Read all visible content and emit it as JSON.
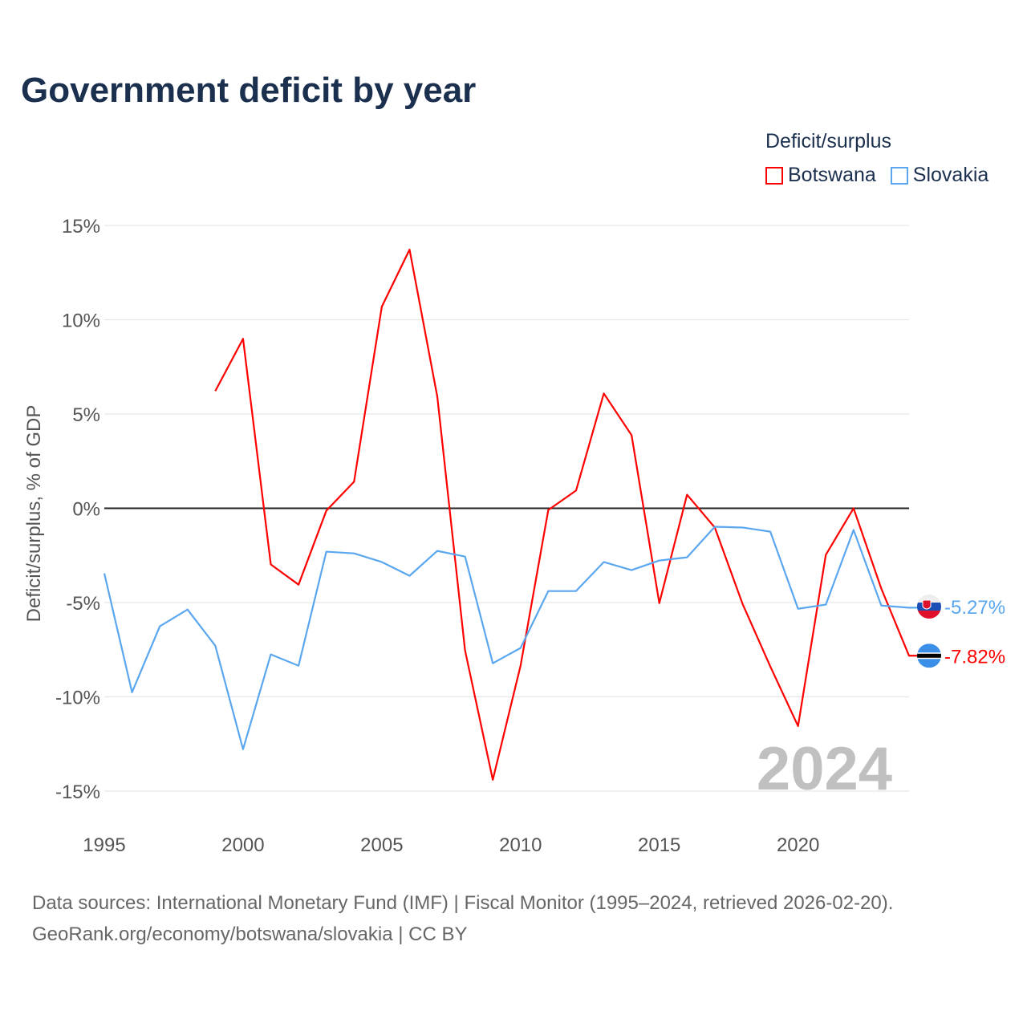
{
  "title": "Government deficit by year",
  "legend": {
    "title": "Deficit/surplus",
    "items": [
      {
        "label": "Botswana",
        "color": "#ff0000"
      },
      {
        "label": "Slovakia",
        "color": "#5aa7f0"
      }
    ]
  },
  "source_lines": [
    "Data sources: International Monetary Fund (IMF) | Fiscal Monitor (1995–2024, retrieved 2026-02-20).",
    "GeoRank.org/economy/botswana/slovakia | CC BY"
  ],
  "chart_data": {
    "type": "line",
    "title": "Government deficit by year",
    "xlabel": "",
    "ylabel": "Deficit/surplus, % of GDP",
    "xlim": [
      1995,
      2024
    ],
    "ylim": [
      -15,
      15
    ],
    "x_ticks": [
      1995,
      2000,
      2005,
      2010,
      2015,
      2020
    ],
    "y_ticks": [
      15,
      10,
      5,
      0,
      -5,
      -10,
      -15
    ],
    "y_tick_labels": [
      "15%",
      "10%",
      "5%",
      "0%",
      "-5%",
      "-10%",
      "-15%"
    ],
    "grid": true,
    "legend_position": "top-right",
    "year_watermark": "2024",
    "series": [
      {
        "name": "Botswana",
        "color": "#ff0000",
        "end_label": "-7.82%",
        "flag": "botswana-flag",
        "x": [
          1999,
          2000,
          2001,
          2002,
          2003,
          2004,
          2005,
          2006,
          2007,
          2008,
          2009,
          2010,
          2011,
          2012,
          2013,
          2014,
          2015,
          2016,
          2017,
          2018,
          2019,
          2020,
          2021,
          2022,
          2023,
          2024
        ],
        "values": [
          6.22,
          8.99,
          -2.98,
          -4.05,
          -0.13,
          1.41,
          10.69,
          13.72,
          5.92,
          -7.54,
          -14.4,
          -8.35,
          -0.09,
          0.94,
          6.09,
          3.88,
          -5.03,
          0.72,
          -1.02,
          -5.07,
          -8.39,
          -11.55,
          -2.47,
          0.0,
          -4.26,
          -7.82
        ]
      },
      {
        "name": "Slovakia",
        "color": "#5aa7f0",
        "end_label": "-5.27%",
        "flag": "slovakia-flag",
        "x": [
          1995,
          1996,
          1997,
          1998,
          1999,
          2000,
          2001,
          2002,
          2003,
          2004,
          2005,
          2006,
          2007,
          2008,
          2009,
          2010,
          2011,
          2012,
          2013,
          2014,
          2015,
          2016,
          2017,
          2018,
          2019,
          2020,
          2021,
          2022,
          2023,
          2024
        ],
        "values": [
          -3.45,
          -9.76,
          -6.26,
          -5.37,
          -7.29,
          -12.78,
          -7.75,
          -8.35,
          -2.3,
          -2.39,
          -2.85,
          -3.58,
          -2.26,
          -2.56,
          -8.22,
          -7.41,
          -4.39,
          -4.39,
          -2.85,
          -3.28,
          -2.77,
          -2.6,
          -0.98,
          -1.02,
          -1.24,
          -5.33,
          -5.11,
          -1.15,
          -5.16,
          -5.27
        ]
      }
    ]
  }
}
